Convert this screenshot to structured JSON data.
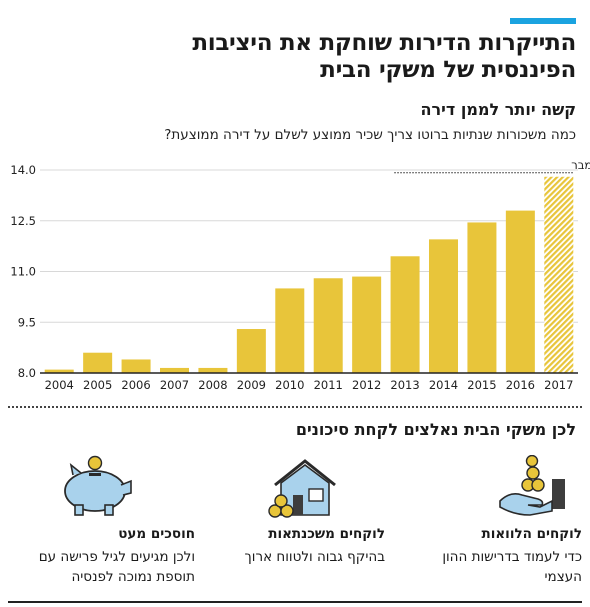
{
  "headline": [
    "התייקרות הדירות שוחקת את היציבות",
    "הפיננסית של משקי הבית"
  ],
  "subhead": "קשה יותר לממן דירה",
  "description": "כמה משכורות שנתיות ברוטו צריך שכיר ממוצע לשלם על דירה ממוצעת?",
  "chart_data": {
    "type": "bar",
    "categories": [
      "2004",
      "2005",
      "2006",
      "2007",
      "2008",
      "2009",
      "2010",
      "2011",
      "2012",
      "2013",
      "2014",
      "2015",
      "2016",
      "2017"
    ],
    "values": [
      8.1,
      8.6,
      8.4,
      8.15,
      8.15,
      9.3,
      10.5,
      10.8,
      10.85,
      11.45,
      11.95,
      12.45,
      12.8,
      13.8
    ],
    "ylim": [
      8.0,
      14.0
    ],
    "yticks": [
      "8.0",
      "9.5",
      "11.0",
      "12.5",
      "14.0"
    ],
    "grid": true,
    "annotation": "ממוצע, עד אוגוסט/ספטמבר",
    "highlight_category": "2017",
    "colors": {
      "bar": "#e8c53a",
      "axis": "#222222",
      "grid": "#d8d8d8"
    }
  },
  "section_title": "לכן משקי הבית נאלצים לקחת סיכונים",
  "columns": [
    {
      "icon": "hand-with-coins-icon",
      "title": "לוקחים הלוואות",
      "text": "כדי לעמוד בדרישות ההון העצמי"
    },
    {
      "icon": "house-with-coins-icon",
      "title": "לוקחים משכנתאות",
      "text": "בהיקף גבוה ולטווח ארוך"
    },
    {
      "icon": "piggy-bank-icon",
      "title": "חוסכים מעט",
      "text": "ולכן מגיעים לגיל פרישה עם תוספת נמוכה לפנסיה"
    }
  ]
}
